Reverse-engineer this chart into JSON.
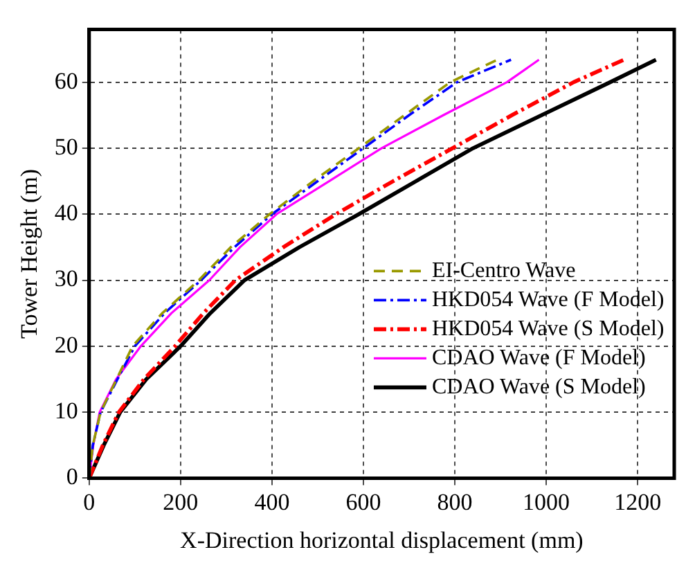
{
  "chart_data": {
    "type": "line",
    "xlabel": "X-Direction horizontal displacement (mm)",
    "ylabel": "Tower Height (m)",
    "xlim": [
      0,
      1280
    ],
    "ylim": [
      0,
      68
    ],
    "xticks": [
      0,
      200,
      400,
      600,
      800,
      1000,
      1200
    ],
    "yticks": [
      0,
      10,
      20,
      30,
      40,
      50,
      60
    ],
    "grid": true,
    "legend": "bottom right",
    "marker": "none",
    "series": [
      {
        "name": "EI-Centro Wave",
        "color": "#999900",
        "line_style": "dashed",
        "x": [
          0,
          8,
          25,
          60,
          95,
          160,
          240,
          310,
          395,
          490,
          590,
          690,
          790,
          893
        ],
        "values": [
          0,
          5,
          10,
          15,
          20,
          25,
          30,
          35,
          40,
          45,
          50,
          55,
          60,
          63.4
        ]
      },
      {
        "name": "HKD054 Wave (F Model)",
        "color": "#0000ff",
        "line_style": "dashdot",
        "x": [
          0,
          8,
          25,
          62,
          100,
          165,
          245,
          318,
          400,
          500,
          600,
          700,
          805,
          923
        ],
        "values": [
          0,
          5,
          10,
          15,
          20,
          25,
          30,
          35,
          40,
          45,
          50,
          55,
          60,
          63.4
        ]
      },
      {
        "name": "HKD054 Wave (S Model)",
        "color": "#ff0000",
        "line_style": "dashdot",
        "x": [
          0,
          30,
          65,
          120,
          188,
          250,
          320,
          425,
          540,
          665,
          795,
          925,
          1060,
          1170
        ],
        "values": [
          0,
          5,
          10,
          15,
          20,
          25,
          30,
          35,
          40,
          45,
          50,
          55,
          60,
          63.4
        ]
      },
      {
        "name": "CDAO Wave (F Model)",
        "color": "#ff00ff",
        "line_style": "solid",
        "x": [
          0,
          9,
          23,
          59,
          113,
          180,
          263,
          330,
          410,
          525,
          640,
          775,
          914,
          984
        ],
        "values": [
          0,
          5,
          10,
          15,
          20,
          25,
          30,
          35,
          40,
          45,
          50,
          55,
          60,
          63.4
        ]
      },
      {
        "name": "CDAO Wave (S Model)",
        "color": "#000000",
        "line_style": "solid",
        "x": [
          0,
          32,
          68,
          125,
          200,
          265,
          340,
          460,
          590,
          715,
          840,
          990,
          1140,
          1240
        ],
        "values": [
          0,
          5,
          10,
          15,
          20,
          25,
          30,
          35,
          40,
          45,
          50,
          55,
          60,
          63.4
        ]
      }
    ]
  }
}
